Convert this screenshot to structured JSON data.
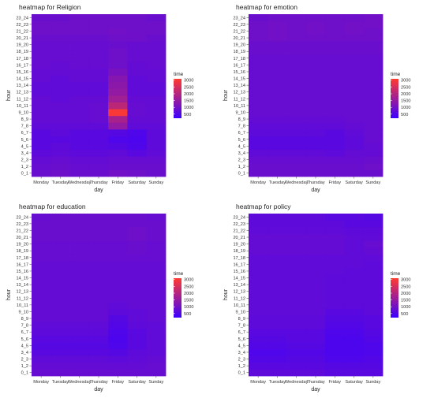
{
  "colors": {
    "low": "#3b00ff",
    "high": "#ff3b30",
    "panel_bg": "#ebebeb"
  },
  "chart_data": [
    {
      "type": "heatmap",
      "title": "heatmap for Religion",
      "xlabel": "day",
      "ylabel": "hour",
      "x": [
        "Monday",
        "Tuesday",
        "Wednesday",
        "Thursday",
        "Friday",
        "Saturday",
        "Sunday"
      ],
      "y": [
        "0_1",
        "1_2",
        "2_3",
        "3_4",
        "4_5",
        "5_6",
        "6_7",
        "7_8",
        "8_9",
        "9_10",
        "10_11",
        "11_12",
        "12_13",
        "13_14",
        "14_15",
        "15_16",
        "16_17",
        "17_18",
        "18_19",
        "19_20",
        "20_21",
        "21_22",
        "22_23",
        "23_24"
      ],
      "legend": {
        "title": "time",
        "ticks": [
          500,
          1000,
          1500,
          2000,
          2500,
          3000
        ],
        "range": [
          200,
          3100
        ]
      },
      "values": [
        [
          900,
          950,
          900,
          900,
          1000,
          950,
          900
        ],
        [
          850,
          900,
          850,
          850,
          900,
          900,
          900
        ],
        [
          800,
          850,
          800,
          800,
          850,
          850,
          850
        ],
        [
          700,
          750,
          700,
          700,
          750,
          650,
          750
        ],
        [
          650,
          700,
          650,
          650,
          600,
          500,
          700
        ],
        [
          650,
          650,
          650,
          650,
          500,
          450,
          700
        ],
        [
          650,
          700,
          650,
          650,
          600,
          500,
          700
        ],
        [
          750,
          750,
          750,
          750,
          1500,
          750,
          750
        ],
        [
          800,
          800,
          800,
          850,
          1800,
          800,
          800
        ],
        [
          800,
          800,
          800,
          850,
          3000,
          850,
          800
        ],
        [
          800,
          800,
          800,
          850,
          2100,
          850,
          800
        ],
        [
          800,
          750,
          800,
          800,
          1700,
          800,
          800
        ],
        [
          750,
          750,
          750,
          750,
          1500,
          750,
          750
        ],
        [
          750,
          750,
          750,
          750,
          1400,
          750,
          750
        ],
        [
          800,
          750,
          800,
          800,
          1300,
          750,
          800
        ],
        [
          800,
          800,
          800,
          800,
          1100,
          800,
          800
        ],
        [
          850,
          800,
          850,
          850,
          950,
          800,
          850
        ],
        [
          850,
          850,
          850,
          850,
          950,
          850,
          850
        ],
        [
          850,
          850,
          850,
          850,
          950,
          850,
          850
        ],
        [
          850,
          850,
          850,
          850,
          900,
          850,
          850
        ],
        [
          900,
          900,
          900,
          900,
          950,
          950,
          900
        ],
        [
          950,
          950,
          950,
          950,
          1000,
          950,
          950
        ],
        [
          950,
          950,
          950,
          950,
          950,
          950,
          950
        ],
        [
          900,
          900,
          950,
          950,
          950,
          950,
          900
        ]
      ]
    },
    {
      "type": "heatmap",
      "title": "heatmap for emotion",
      "xlabel": "day",
      "ylabel": "hour",
      "x": [
        "Monday",
        "Tuesday",
        "Wednesday",
        "Thursday",
        "Friday",
        "Saturday",
        "Sunday"
      ],
      "y": [
        "0_1",
        "1_2",
        "2_3",
        "3_4",
        "4_5",
        "5_6",
        "6_7",
        "7_8",
        "8_9",
        "9_10",
        "10_11",
        "11_12",
        "12_13",
        "13_14",
        "14_15",
        "15_16",
        "16_17",
        "17_18",
        "18_19",
        "19_20",
        "20_21",
        "21_22",
        "22_23",
        "23_24"
      ],
      "legend": {
        "title": "time",
        "ticks": [
          500,
          1000,
          1500,
          2000,
          2500,
          3000
        ],
        "range": [
          200,
          3100
        ]
      },
      "values": [
        [
          900,
          900,
          900,
          900,
          900,
          900,
          900
        ],
        [
          900,
          900,
          900,
          900,
          900,
          900,
          950
        ],
        [
          850,
          850,
          850,
          850,
          850,
          850,
          900
        ],
        [
          750,
          750,
          750,
          750,
          700,
          800,
          800
        ],
        [
          650,
          650,
          650,
          650,
          650,
          700,
          800
        ],
        [
          650,
          650,
          650,
          650,
          650,
          700,
          850
        ],
        [
          700,
          700,
          700,
          700,
          650,
          750,
          850
        ],
        [
          750,
          750,
          750,
          750,
          750,
          800,
          850
        ],
        [
          800,
          800,
          800,
          800,
          800,
          850,
          850
        ],
        [
          850,
          850,
          850,
          850,
          850,
          850,
          850
        ],
        [
          850,
          850,
          850,
          850,
          850,
          850,
          850
        ],
        [
          850,
          850,
          850,
          850,
          850,
          850,
          850
        ],
        [
          850,
          850,
          850,
          850,
          850,
          850,
          850
        ],
        [
          850,
          850,
          850,
          850,
          850,
          850,
          850
        ],
        [
          850,
          850,
          850,
          850,
          850,
          850,
          850
        ],
        [
          850,
          850,
          850,
          850,
          850,
          850,
          850
        ],
        [
          850,
          850,
          850,
          850,
          850,
          850,
          850
        ],
        [
          850,
          850,
          850,
          850,
          850,
          850,
          850
        ],
        [
          900,
          900,
          900,
          900,
          900,
          900,
          900
        ],
        [
          900,
          900,
          900,
          900,
          900,
          900,
          900
        ],
        [
          950,
          1000,
          950,
          950,
          950,
          950,
          950
        ],
        [
          950,
          1000,
          950,
          1000,
          950,
          1000,
          950
        ],
        [
          950,
          1000,
          950,
          1000,
          950,
          1000,
          1000
        ],
        [
          900,
          950,
          950,
          950,
          950,
          950,
          1000
        ]
      ]
    },
    {
      "type": "heatmap",
      "title": "heatmap for education",
      "xlabel": "day",
      "ylabel": "hour",
      "x": [
        "Monday",
        "Tuesday",
        "Wednesday",
        "Thursday",
        "Friday",
        "Saturday",
        "Sunday"
      ],
      "y": [
        "0_1",
        "1_2",
        "2_3",
        "3_4",
        "4_5",
        "5_6",
        "6_7",
        "7_8",
        "8_9",
        "9_10",
        "10_11",
        "11_12",
        "12_13",
        "13_14",
        "14_15",
        "15_16",
        "16_17",
        "17_18",
        "18_19",
        "19_20",
        "20_21",
        "21_22",
        "22_23",
        "23_24"
      ],
      "legend": {
        "title": "time",
        "ticks": [
          500,
          1000,
          1500,
          2000,
          2500,
          3000
        ],
        "range": [
          200,
          3100
        ]
      },
      "values": [
        [
          850,
          850,
          850,
          850,
          850,
          850,
          850
        ],
        [
          800,
          800,
          800,
          800,
          800,
          800,
          850
        ],
        [
          750,
          750,
          750,
          750,
          700,
          750,
          800
        ],
        [
          650,
          650,
          650,
          650,
          600,
          700,
          750
        ],
        [
          600,
          600,
          600,
          600,
          500,
          650,
          750
        ],
        [
          650,
          650,
          650,
          650,
          450,
          650,
          750
        ],
        [
          700,
          700,
          700,
          700,
          500,
          650,
          750
        ],
        [
          750,
          750,
          750,
          750,
          550,
          700,
          750
        ],
        [
          800,
          800,
          800,
          800,
          600,
          750,
          800
        ],
        [
          800,
          800,
          800,
          800,
          700,
          750,
          800
        ],
        [
          800,
          800,
          800,
          800,
          750,
          800,
          800
        ],
        [
          800,
          800,
          800,
          800,
          800,
          800,
          800
        ],
        [
          800,
          800,
          800,
          800,
          800,
          800,
          800
        ],
        [
          800,
          800,
          800,
          800,
          800,
          800,
          800
        ],
        [
          800,
          800,
          800,
          800,
          800,
          800,
          800
        ],
        [
          800,
          800,
          800,
          800,
          800,
          800,
          800
        ],
        [
          800,
          800,
          800,
          800,
          800,
          800,
          800
        ],
        [
          850,
          850,
          850,
          850,
          850,
          850,
          850
        ],
        [
          850,
          850,
          850,
          850,
          850,
          900,
          850
        ],
        [
          850,
          850,
          850,
          850,
          850,
          900,
          850
        ],
        [
          900,
          900,
          900,
          900,
          900,
          950,
          900
        ],
        [
          900,
          900,
          900,
          900,
          900,
          950,
          900
        ],
        [
          900,
          900,
          900,
          900,
          900,
          900,
          900
        ],
        [
          850,
          900,
          900,
          900,
          900,
          900,
          850
        ]
      ]
    },
    {
      "type": "heatmap",
      "title": "heatmap for policy",
      "xlabel": "day",
      "ylabel": "hour",
      "x": [
        "Monday",
        "Tuesday",
        "Wednesday",
        "Thursday",
        "Friday",
        "Saturday",
        "Sunday"
      ],
      "y": [
        "0_1",
        "1_2",
        "2_3",
        "3_4",
        "4_5",
        "5_6",
        "6_7",
        "7_8",
        "8_9",
        "9_10",
        "10_11",
        "11_12",
        "12_13",
        "13_14",
        "14_15",
        "15_16",
        "16_17",
        "17_18",
        "18_19",
        "19_20",
        "20_21",
        "21_22",
        "22_23",
        "23_24"
      ],
      "legend": {
        "title": "time",
        "ticks": [
          500,
          1000,
          1500,
          2000,
          2500,
          3000
        ],
        "range": [
          200,
          3100
        ]
      },
      "values": [
        [
          700,
          700,
          700,
          700,
          650,
          650,
          650
        ],
        [
          650,
          650,
          650,
          650,
          600,
          600,
          600
        ],
        [
          550,
          550,
          600,
          600,
          500,
          500,
          550
        ],
        [
          500,
          500,
          550,
          550,
          450,
          450,
          500
        ],
        [
          550,
          550,
          600,
          600,
          450,
          450,
          500
        ],
        [
          600,
          600,
          650,
          650,
          450,
          450,
          550
        ],
        [
          650,
          650,
          650,
          650,
          500,
          500,
          600
        ],
        [
          700,
          700,
          700,
          700,
          550,
          550,
          650
        ],
        [
          700,
          700,
          700,
          700,
          600,
          600,
          650
        ],
        [
          750,
          750,
          750,
          750,
          650,
          650,
          700
        ],
        [
          750,
          750,
          750,
          750,
          700,
          700,
          700
        ],
        [
          750,
          750,
          750,
          750,
          700,
          700,
          700
        ],
        [
          750,
          750,
          750,
          750,
          700,
          700,
          700
        ],
        [
          750,
          750,
          750,
          750,
          700,
          700,
          700
        ],
        [
          750,
          750,
          750,
          750,
          700,
          700,
          700
        ],
        [
          750,
          750,
          750,
          750,
          750,
          700,
          700
        ],
        [
          750,
          750,
          750,
          750,
          750,
          750,
          700
        ],
        [
          750,
          750,
          750,
          750,
          750,
          750,
          750
        ],
        [
          800,
          800,
          800,
          800,
          800,
          750,
          800
        ],
        [
          800,
          800,
          800,
          800,
          800,
          750,
          850
        ],
        [
          800,
          800,
          800,
          800,
          800,
          750,
          750
        ],
        [
          750,
          750,
          750,
          750,
          750,
          700,
          700
        ],
        [
          700,
          700,
          700,
          700,
          700,
          650,
          650
        ],
        [
          700,
          700,
          700,
          700,
          650,
          650,
          600
        ]
      ]
    }
  ]
}
